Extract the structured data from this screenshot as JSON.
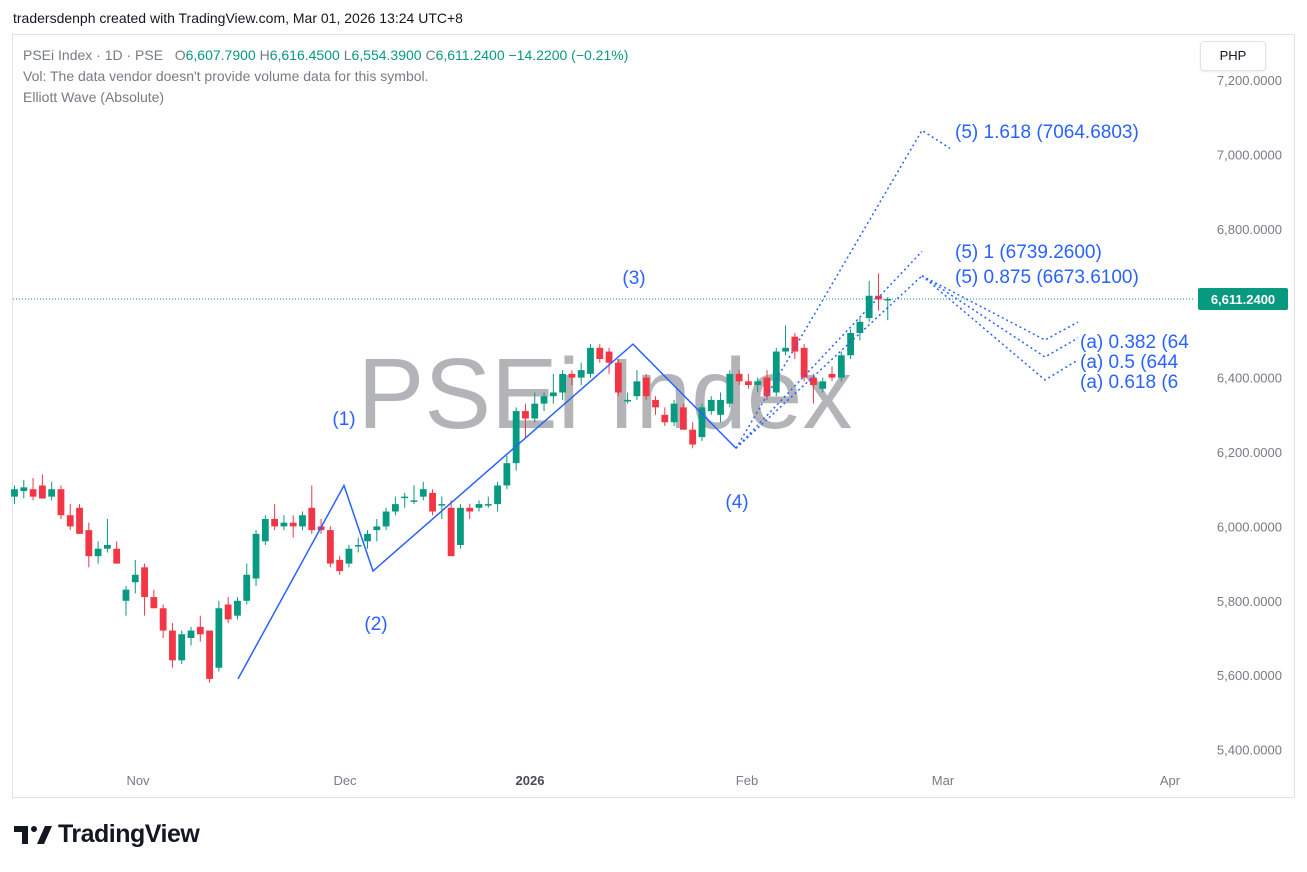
{
  "attribution": "tradersdenph created with TradingView.com, Mar 01, 2026 13:24 UTC+8",
  "legend": {
    "symbol": "PSEi Index · 1D · PSE",
    "open_label": "O",
    "open": "6,607.7900",
    "high_label": "H",
    "high": "6,616.4500",
    "low_label": "L",
    "low": "6,554.3900",
    "close_label": "C",
    "close": "6,611.2400",
    "change": "−14.2200 (−0.21%)",
    "volume_note": "Vol: The data vendor doesn't provide volume data for this symbol.",
    "indicator": "Elliott Wave (Absolute)"
  },
  "currency_button": "PHP",
  "watermark": "PSEi Index",
  "brand": "TradingView",
  "colors": {
    "up": "#089981",
    "down": "#f23645",
    "wave": "#2962ff",
    "price_label_bg": "#089981",
    "axis_text": "#787b86"
  },
  "chart_data": {
    "type": "candlestick",
    "symbol": "PSEi Index",
    "interval": "1D",
    "ylim": [
      5300,
      7270
    ],
    "y_ticks": [
      7200,
      7000,
      6800,
      6600,
      6400,
      6200,
      6000,
      5800,
      5600,
      5400
    ],
    "y_tick_labels": [
      "7,200.0000",
      "7,000.0000",
      "6,800.0000",
      "6,600.0000",
      "6,400.0000",
      "6,200.0000",
      "6,000.0000",
      "5,800.0000",
      "5,600.0000",
      "5,400.0000"
    ],
    "x_labels": [
      "Nov",
      "Dec",
      "2026",
      "Feb",
      "Mar",
      "Apr"
    ],
    "last_price": 6611.24,
    "last_price_label": "6,611.2400",
    "candles": [
      {
        "o": 6080,
        "h": 6110,
        "l": 6060,
        "c": 6100
      },
      {
        "o": 6095,
        "h": 6125,
        "l": 6075,
        "c": 6105
      },
      {
        "o": 6100,
        "h": 6130,
        "l": 6070,
        "c": 6080
      },
      {
        "o": 6110,
        "h": 6140,
        "l": 6075,
        "c": 6075
      },
      {
        "o": 6080,
        "h": 6120,
        "l": 6070,
        "c": 6100
      },
      {
        "o": 6100,
        "h": 6110,
        "l": 6020,
        "c": 6030
      },
      {
        "o": 6030,
        "h": 6060,
        "l": 5990,
        "c": 6000
      },
      {
        "o": 6050,
        "h": 6060,
        "l": 5980,
        "c": 5980
      },
      {
        "o": 5990,
        "h": 6010,
        "l": 5890,
        "c": 5920
      },
      {
        "o": 5920,
        "h": 5960,
        "l": 5900,
        "c": 5940
      },
      {
        "o": 5940,
        "h": 6020,
        "l": 5930,
        "c": 5950
      },
      {
        "o": 5940,
        "h": 5960,
        "l": 5900,
        "c": 5900
      },
      {
        "o": 5800,
        "h": 5840,
        "l": 5760,
        "c": 5830
      },
      {
        "o": 5850,
        "h": 5910,
        "l": 5820,
        "c": 5870
      },
      {
        "o": 5890,
        "h": 5900,
        "l": 5760,
        "c": 5810
      },
      {
        "o": 5810,
        "h": 5830,
        "l": 5780,
        "c": 5780
      },
      {
        "o": 5780,
        "h": 5790,
        "l": 5700,
        "c": 5720
      },
      {
        "o": 5720,
        "h": 5740,
        "l": 5620,
        "c": 5640
      },
      {
        "o": 5640,
        "h": 5720,
        "l": 5630,
        "c": 5710
      },
      {
        "o": 5700,
        "h": 5730,
        "l": 5680,
        "c": 5720
      },
      {
        "o": 5730,
        "h": 5760,
        "l": 5690,
        "c": 5710
      },
      {
        "o": 5720,
        "h": 5720,
        "l": 5580,
        "c": 5590
      },
      {
        "o": 5620,
        "h": 5800,
        "l": 5610,
        "c": 5780
      },
      {
        "o": 5790,
        "h": 5810,
        "l": 5740,
        "c": 5750
      },
      {
        "o": 5760,
        "h": 5810,
        "l": 5750,
        "c": 5800
      },
      {
        "o": 5800,
        "h": 5900,
        "l": 5790,
        "c": 5870
      },
      {
        "o": 5860,
        "h": 5990,
        "l": 5840,
        "c": 5980
      },
      {
        "o": 5960,
        "h": 6030,
        "l": 5950,
        "c": 6020
      },
      {
        "o": 6020,
        "h": 6060,
        "l": 5990,
        "c": 6000
      },
      {
        "o": 6000,
        "h": 6030,
        "l": 5990,
        "c": 6010
      },
      {
        "o": 6010,
        "h": 6030,
        "l": 5970,
        "c": 6000
      },
      {
        "o": 6000,
        "h": 6040,
        "l": 5990,
        "c": 6030
      },
      {
        "o": 6050,
        "h": 6110,
        "l": 5980,
        "c": 5990
      },
      {
        "o": 6000,
        "h": 6020,
        "l": 5980,
        "c": 5990
      },
      {
        "o": 5990,
        "h": 6000,
        "l": 5890,
        "c": 5900
      },
      {
        "o": 5910,
        "h": 5920,
        "l": 5870,
        "c": 5880
      },
      {
        "o": 5900,
        "h": 5950,
        "l": 5890,
        "c": 5940
      },
      {
        "o": 5950,
        "h": 5970,
        "l": 5930,
        "c": 5950
      },
      {
        "o": 5960,
        "h": 5990,
        "l": 5940,
        "c": 5980
      },
      {
        "o": 5990,
        "h": 6020,
        "l": 5960,
        "c": 6000
      },
      {
        "o": 6000,
        "h": 6050,
        "l": 5990,
        "c": 6040
      },
      {
        "o": 6040,
        "h": 6080,
        "l": 6030,
        "c": 6060
      },
      {
        "o": 6080,
        "h": 6090,
        "l": 6050,
        "c": 6080
      },
      {
        "o": 6070,
        "h": 6110,
        "l": 6060,
        "c": 6070
      },
      {
        "o": 6080,
        "h": 6120,
        "l": 6070,
        "c": 6100
      },
      {
        "o": 6090,
        "h": 6100,
        "l": 6030,
        "c": 6040
      },
      {
        "o": 6060,
        "h": 6080,
        "l": 6020,
        "c": 6060
      },
      {
        "o": 6050,
        "h": 6070,
        "l": 5920,
        "c": 5920
      },
      {
        "o": 5950,
        "h": 6060,
        "l": 5940,
        "c": 6050
      },
      {
        "o": 6050,
        "h": 6060,
        "l": 6020,
        "c": 6040
      },
      {
        "o": 6050,
        "h": 6070,
        "l": 6040,
        "c": 6060
      },
      {
        "o": 6060,
        "h": 6080,
        "l": 6050,
        "c": 6060
      },
      {
        "o": 6060,
        "h": 6120,
        "l": 6040,
        "c": 6110
      },
      {
        "o": 6110,
        "h": 6190,
        "l": 6100,
        "c": 6170
      },
      {
        "o": 6170,
        "h": 6320,
        "l": 6150,
        "c": 6310
      },
      {
        "o": 6310,
        "h": 6330,
        "l": 6240,
        "c": 6290
      },
      {
        "o": 6290,
        "h": 6360,
        "l": 6280,
        "c": 6330
      },
      {
        "o": 6330,
        "h": 6360,
        "l": 6310,
        "c": 6350
      },
      {
        "o": 6350,
        "h": 6410,
        "l": 6330,
        "c": 6360
      },
      {
        "o": 6360,
        "h": 6420,
        "l": 6340,
        "c": 6410
      },
      {
        "o": 6410,
        "h": 6420,
        "l": 6380,
        "c": 6400
      },
      {
        "o": 6400,
        "h": 6440,
        "l": 6380,
        "c": 6420
      },
      {
        "o": 6410,
        "h": 6490,
        "l": 6400,
        "c": 6480
      },
      {
        "o": 6480,
        "h": 6490,
        "l": 6440,
        "c": 6450
      },
      {
        "o": 6470,
        "h": 6480,
        "l": 6410,
        "c": 6440
      },
      {
        "o": 6440,
        "h": 6450,
        "l": 6350,
        "c": 6360
      },
      {
        "o": 6340,
        "h": 6360,
        "l": 6330,
        "c": 6340
      },
      {
        "o": 6350,
        "h": 6420,
        "l": 6340,
        "c": 6390
      },
      {
        "o": 6400,
        "h": 6410,
        "l": 6340,
        "c": 6350
      },
      {
        "o": 6340,
        "h": 6350,
        "l": 6300,
        "c": 6320
      },
      {
        "o": 6300,
        "h": 6320,
        "l": 6270,
        "c": 6280
      },
      {
        "o": 6280,
        "h": 6340,
        "l": 6270,
        "c": 6330
      },
      {
        "o": 6320,
        "h": 6330,
        "l": 6260,
        "c": 6260
      },
      {
        "o": 6260,
        "h": 6280,
        "l": 6210,
        "c": 6220
      },
      {
        "o": 6240,
        "h": 6330,
        "l": 6230,
        "c": 6320
      },
      {
        "o": 6310,
        "h": 6350,
        "l": 6300,
        "c": 6340
      },
      {
        "o": 6300,
        "h": 6360,
        "l": 6280,
        "c": 6340
      },
      {
        "o": 6330,
        "h": 6420,
        "l": 6320,
        "c": 6410
      },
      {
        "o": 6410,
        "h": 6420,
        "l": 6380,
        "c": 6390
      },
      {
        "o": 6390,
        "h": 6410,
        "l": 6370,
        "c": 6380
      },
      {
        "o": 6380,
        "h": 6400,
        "l": 6360,
        "c": 6390
      },
      {
        "o": 6400,
        "h": 6420,
        "l": 6340,
        "c": 6350
      },
      {
        "o": 6360,
        "h": 6480,
        "l": 6350,
        "c": 6470
      },
      {
        "o": 6470,
        "h": 6540,
        "l": 6460,
        "c": 6480
      },
      {
        "o": 6510,
        "h": 6520,
        "l": 6450,
        "c": 6470
      },
      {
        "o": 6480,
        "h": 6490,
        "l": 6390,
        "c": 6400
      },
      {
        "o": 6400,
        "h": 6410,
        "l": 6330,
        "c": 6380
      },
      {
        "o": 6370,
        "h": 6400,
        "l": 6360,
        "c": 6390
      },
      {
        "o": 6410,
        "h": 6430,
        "l": 6390,
        "c": 6400
      },
      {
        "o": 6400,
        "h": 6470,
        "l": 6390,
        "c": 6460
      },
      {
        "o": 6460,
        "h": 6530,
        "l": 6450,
        "c": 6520
      },
      {
        "o": 6520,
        "h": 6560,
        "l": 6500,
        "c": 6550
      },
      {
        "o": 6560,
        "h": 6660,
        "l": 6550,
        "c": 6620
      },
      {
        "o": 6620,
        "h": 6680,
        "l": 6580,
        "c": 6610
      },
      {
        "o": 6607.79,
        "h": 6616.45,
        "l": 6554.39,
        "c": 6611.24
      }
    ],
    "elliott_wave": {
      "labels": [
        "(1)",
        "(2)",
        "(3)",
        "(4)"
      ],
      "pivot_prices": [
        5590,
        6110,
        5880,
        6490,
        6210
      ]
    },
    "projections": [
      {
        "label": "(5) 1.618 (7064.6803)",
        "value": 7064.6803
      },
      {
        "label": "(5) 1 (6739.2600)",
        "value": 6739.26
      },
      {
        "label": "(5) 0.875 (6673.6100)",
        "value": 6673.61
      }
    ],
    "retracements": [
      {
        "label": "(a) 0.382 (64",
        "value": 6490
      },
      {
        "label": "(a) 0.5 (644",
        "value": 6440
      },
      {
        "label": "(a) 0.618 (6",
        "value": 6390
      }
    ]
  }
}
